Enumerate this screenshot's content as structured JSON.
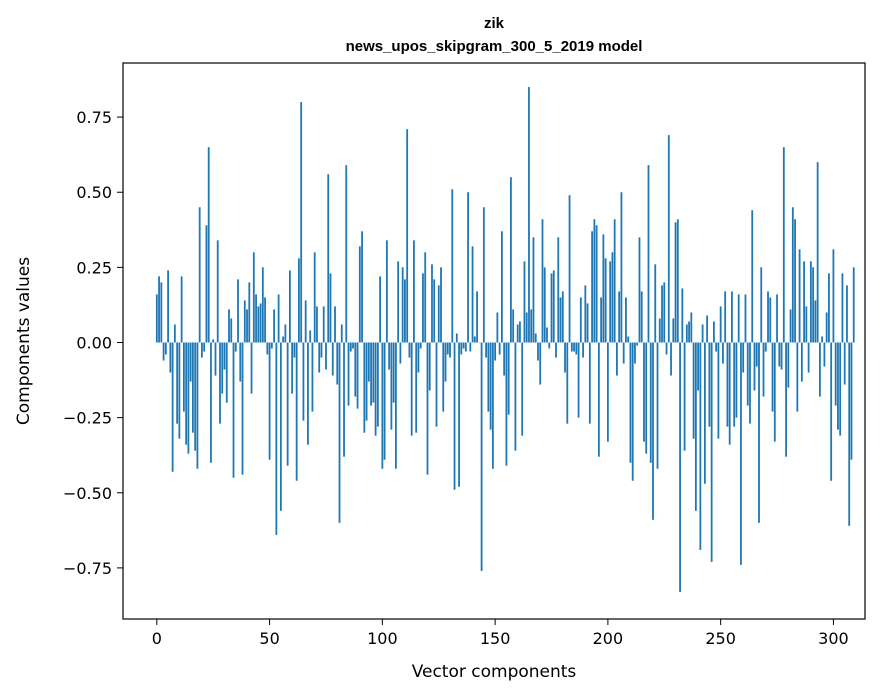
{
  "chart_data": {
    "type": "bar",
    "title": "zik",
    "subtitle": "news_upos_skipgram_300_5_2019 model",
    "xlabel": "Vector components",
    "ylabel": "Components values",
    "xlim": [
      -15,
      314
    ],
    "ylim": [
      -0.92,
      0.93
    ],
    "xticks": [
      0,
      50,
      100,
      150,
      200,
      250,
      300
    ],
    "xtick_labels": [
      "0",
      "50",
      "100",
      "150",
      "200",
      "250",
      "300"
    ],
    "yticks": [
      -0.75,
      -0.5,
      -0.25,
      0.0,
      0.25,
      0.5,
      0.75
    ],
    "ytick_labels": [
      "−0.75",
      "−0.50",
      "−0.25",
      "0.00",
      "0.25",
      "0.50",
      "0.75"
    ],
    "bar_color": "#1f77b4",
    "values": [
      0.16,
      0.22,
      0.2,
      -0.06,
      -0.04,
      0.24,
      -0.1,
      -0.43,
      0.06,
      -0.27,
      -0.32,
      0.22,
      -0.23,
      -0.34,
      -0.37,
      -0.13,
      -0.3,
      -0.36,
      -0.42,
      0.45,
      -0.05,
      -0.03,
      0.39,
      0.65,
      -0.4,
      0.01,
      -0.11,
      0.34,
      -0.27,
      -0.17,
      -0.09,
      -0.2,
      0.11,
      0.08,
      -0.45,
      -0.03,
      0.21,
      -0.13,
      -0.44,
      0.14,
      0.11,
      0.2,
      -0.17,
      0.3,
      0.16,
      0.12,
      0.13,
      0.25,
      0.15,
      -0.04,
      -0.39,
      -0.02,
      0.11,
      -0.64,
      0.16,
      -0.56,
      0.02,
      0.06,
      -0.41,
      0.24,
      -0.17,
      -0.05,
      -0.46,
      0.28,
      0.8,
      -0.26,
      0.14,
      -0.34,
      0.04,
      -0.23,
      0.3,
      0.12,
      -0.1,
      -0.05,
      0.12,
      -0.09,
      0.56,
      0.23,
      -0.11,
      0.12,
      -0.14,
      -0.6,
      0.06,
      -0.38,
      0.59,
      -0.21,
      -0.03,
      -0.02,
      -0.18,
      -0.22,
      0.32,
      0.37,
      -0.3,
      -0.26,
      -0.13,
      -0.21,
      -0.2,
      -0.31,
      -0.28,
      0.22,
      -0.42,
      -0.39,
      0.34,
      -0.09,
      -0.29,
      -0.2,
      -0.42,
      0.27,
      -0.07,
      0.25,
      0.21,
      0.71,
      -0.05,
      -0.31,
      0.34,
      -0.3,
      -0.1,
      -0.02,
      0.23,
      0.3,
      -0.44,
      -0.16,
      0.26,
      0.21,
      -0.28,
      0.19,
      0.25,
      -0.23,
      -0.13,
      -0.04,
      -0.05,
      0.51,
      -0.49,
      0.03,
      -0.48,
      -0.04,
      -0.02,
      -0.03,
      0.5,
      -0.03,
      0.32,
      0.02,
      0.17,
      0.0,
      -0.76,
      0.45,
      -0.05,
      -0.23,
      -0.29,
      -0.42,
      -0.06,
      0.1,
      -0.04,
      0.37,
      -0.11,
      -0.41,
      -0.24,
      0.55,
      0.11,
      -0.36,
      0.06,
      0.07,
      -0.31,
      0.27,
      0.1,
      0.85,
      0.11,
      0.35,
      0.03,
      -0.06,
      -0.14,
      0.41,
      0.25,
      0.05,
      -0.02,
      0.23,
      0.24,
      -0.05,
      0.35,
      0.15,
      0.17,
      -0.1,
      -0.27,
      0.49,
      -0.03,
      -0.03,
      -0.04,
      -0.25,
      0.15,
      -0.05,
      0.19,
      0.13,
      -0.27,
      0.37,
      0.41,
      0.39,
      -0.38,
      0.15,
      0.36,
      0.28,
      -0.33,
      0.27,
      0.3,
      0.41,
      -0.11,
      0.17,
      0.5,
      -0.07,
      0.15,
      0.02,
      -0.4,
      -0.46,
      -0.07,
      -0.01,
      0.35,
      0.17,
      -0.33,
      -0.37,
      0.59,
      -0.4,
      -0.59,
      0.26,
      -0.42,
      0.08,
      0.19,
      0.2,
      -0.04,
      0.69,
      -0.11,
      0.08,
      0.4,
      0.41,
      -0.83,
      0.18,
      -0.36,
      0.06,
      0.07,
      0.1,
      -0.32,
      -0.56,
      -0.16,
      -0.69,
      0.06,
      -0.47,
      0.09,
      -0.28,
      -0.73,
      0.07,
      -0.03,
      -0.32,
      0.12,
      -0.07,
      0.17,
      -0.28,
      -0.34,
      0.17,
      -0.28,
      -0.25,
      0.16,
      -0.74,
      -0.1,
      0.16,
      -0.21,
      -0.27,
      0.44,
      -0.16,
      -0.08,
      -0.6,
      0.25,
      -0.18,
      -0.03,
      0.17,
      0.15,
      -0.23,
      -0.33,
      0.16,
      -0.08,
      -0.09,
      0.65,
      -0.38,
      -0.15,
      0.11,
      0.45,
      0.41,
      -0.23,
      0.31,
      -0.13,
      0.27,
      0.12,
      -0.1,
      0.27,
      0.25,
      0.14,
      0.6,
      -0.18,
      0.02,
      -0.08,
      0.1,
      0.23,
      -0.46,
      0.31,
      -0.21,
      -0.29,
      -0.31,
      0.23,
      -0.14,
      0.19,
      -0.61,
      -0.39,
      0.25
    ]
  }
}
